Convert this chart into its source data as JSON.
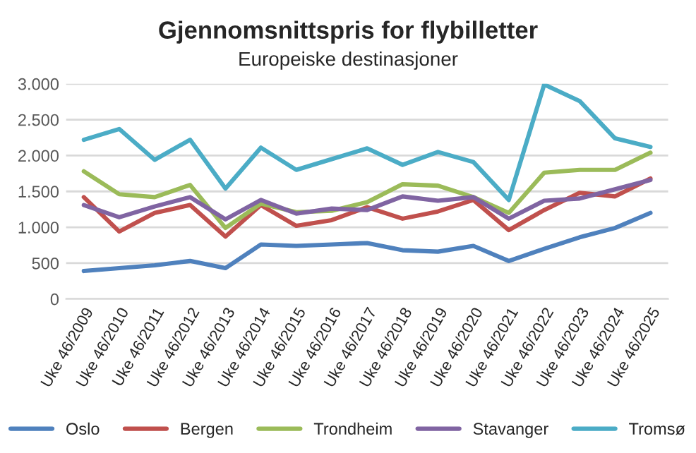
{
  "chart_data": {
    "type": "line",
    "title": "Gjennomsnittspris for flybilletter",
    "subtitle": "Europeiske destinasjoner",
    "categories": [
      "Uke 46/2009",
      "Uke 46/2010",
      "Uke 46/2011",
      "Uke 46/2012",
      "Uke 46/2013",
      "Uke 46/2014",
      "Uke 46/2015",
      "Uke 46/2016",
      "Uke 46/2017",
      "Uke 46/2018",
      "Uke 46/2019",
      "Uke 46/2020",
      "Uke 46/2021",
      "Uke 46/2022",
      "Uke 46/2023",
      "Uke 46/2024",
      "Uke 46/2025"
    ],
    "series": [
      {
        "name": "Oslo",
        "color": "#4f81bd",
        "values": [
          390,
          430,
          470,
          530,
          430,
          760,
          740,
          760,
          780,
          680,
          660,
          740,
          530,
          700,
          860,
          990,
          1200
        ]
      },
      {
        "name": "Bergen",
        "color": "#c0504d",
        "values": [
          1420,
          940,
          1200,
          1310,
          870,
          1310,
          1020,
          1100,
          1280,
          1120,
          1220,
          1380,
          960,
          1240,
          1480,
          1430,
          1680
        ]
      },
      {
        "name": "Trondheim",
        "color": "#9bbb59",
        "values": [
          1780,
          1460,
          1420,
          1590,
          990,
          1330,
          1210,
          1230,
          1350,
          1600,
          1580,
          1420,
          1200,
          1760,
          1800,
          1800,
          2040
        ]
      },
      {
        "name": "Stavanger",
        "color": "#8064a2",
        "values": [
          1310,
          1140,
          1290,
          1420,
          1110,
          1380,
          1190,
          1260,
          1240,
          1430,
          1370,
          1420,
          1120,
          1370,
          1400,
          1530,
          1660
        ]
      },
      {
        "name": "Tromsø",
        "color": "#4bacc6",
        "values": [
          2220,
          2370,
          1940,
          2220,
          1540,
          2110,
          1800,
          1950,
          2100,
          1870,
          2050,
          1910,
          1380,
          2990,
          2760,
          2240,
          2120
        ]
      }
    ],
    "ylim": [
      0,
      3000
    ],
    "yticks": [
      {
        "value": 0,
        "label": "0"
      },
      {
        "value": 500,
        "label": "500"
      },
      {
        "value": 1000,
        "label": "1.000"
      },
      {
        "value": 1500,
        "label": "1.500"
      },
      {
        "value": 2000,
        "label": "2.000"
      },
      {
        "value": 2500,
        "label": "2.500"
      },
      {
        "value": 3000,
        "label": "3.000"
      }
    ],
    "grid": "y",
    "legend": "bottom",
    "marker": "none",
    "line_style": "solid"
  }
}
